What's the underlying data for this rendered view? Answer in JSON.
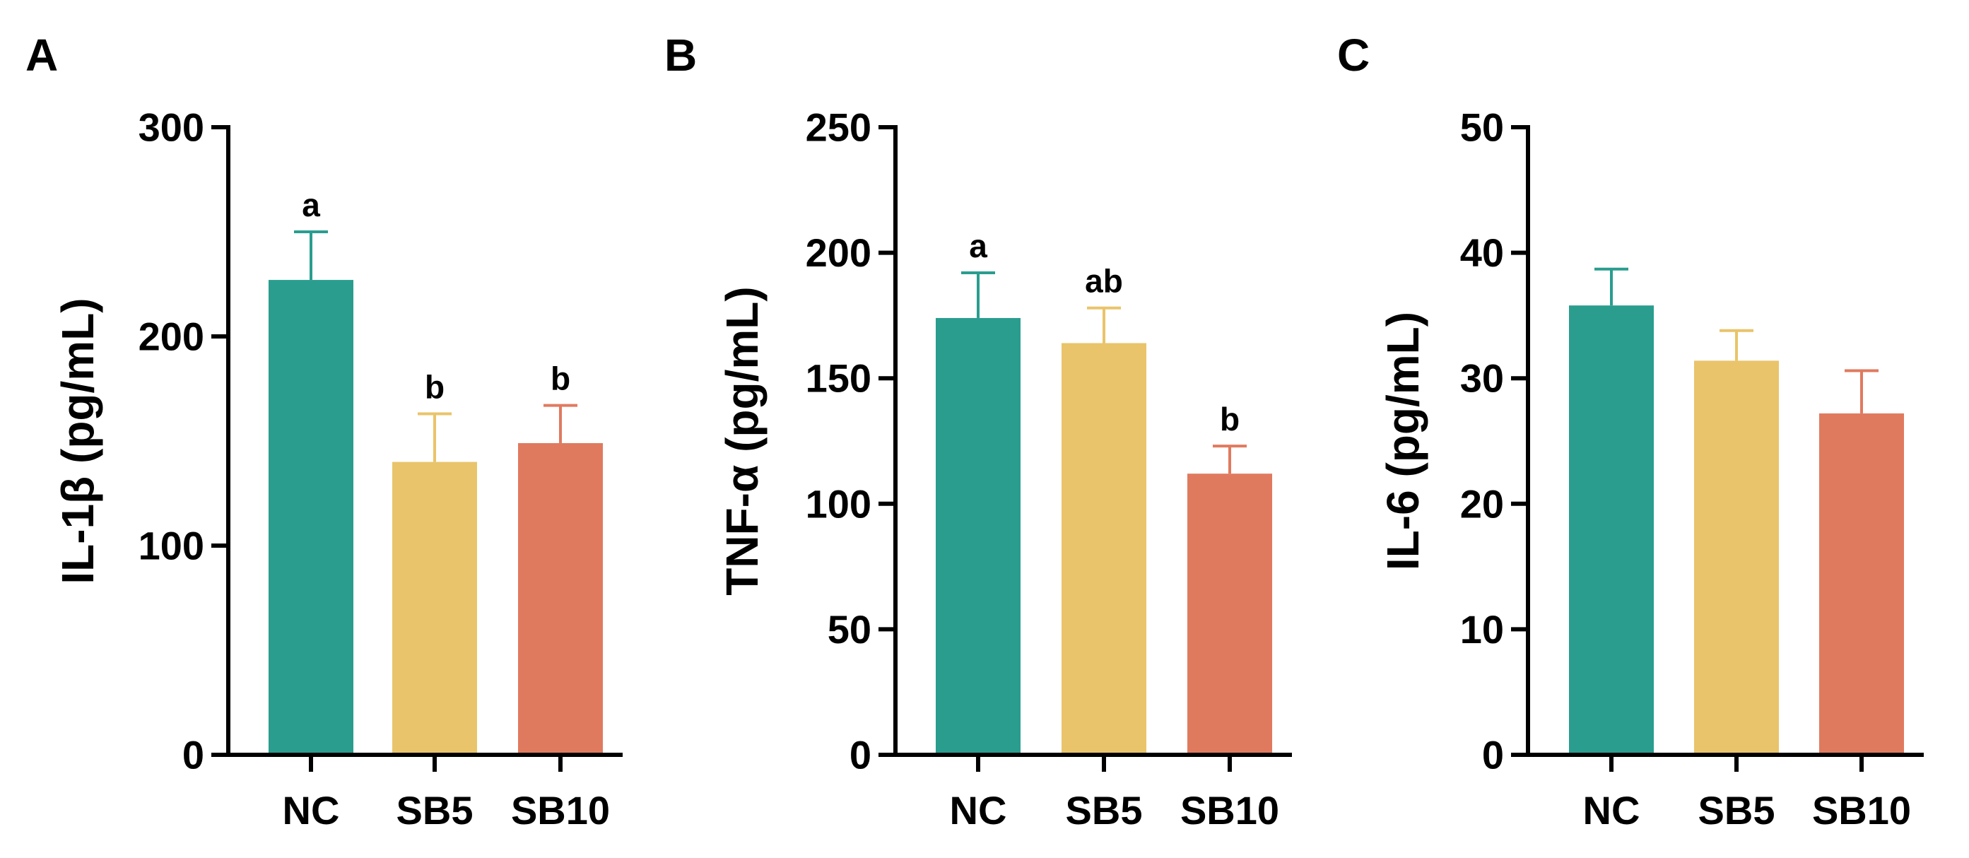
{
  "colors": {
    "NC": "#2a9d8f",
    "SB5": "#e9c46a",
    "SB10": "#e07a5f",
    "axis": "#000000"
  },
  "chart_data": [
    {
      "panel": "A",
      "type": "bar",
      "title": "",
      "xlabel": "",
      "ylabel": "IL-1β (pg/mL)",
      "categories": [
        "NC",
        "SB5",
        "SB10"
      ],
      "values": [
        227,
        140,
        149
      ],
      "errors": [
        23,
        23,
        18
      ],
      "significance": [
        "a",
        "b",
        "b"
      ],
      "ylim": [
        0,
        300
      ],
      "yticks": [
        0,
        100,
        200,
        300
      ],
      "ytick_labels": [
        "0",
        "100",
        "200",
        "300"
      ],
      "grid": false
    },
    {
      "panel": "B",
      "type": "bar",
      "title": "",
      "xlabel": "",
      "ylabel": "TNF-α (pg/mL)",
      "categories": [
        "NC",
        "SB5",
        "SB10"
      ],
      "values": [
        174,
        164,
        112
      ],
      "errors": [
        18,
        14,
        11
      ],
      "significance": [
        "a",
        "ab",
        "b"
      ],
      "ylim": [
        0,
        250
      ],
      "yticks": [
        0,
        50,
        100,
        150,
        200,
        250
      ],
      "ytick_labels": [
        "0",
        "50",
        "100",
        "150",
        "200",
        "250"
      ],
      "grid": false
    },
    {
      "panel": "C",
      "type": "bar",
      "title": "",
      "xlabel": "",
      "ylabel": "IL-6 (pg/mL)",
      "categories": [
        "NC",
        "SB5",
        "SB10"
      ],
      "values": [
        35.8,
        31.4,
        27.2
      ],
      "errors": [
        2.9,
        2.4,
        3.4
      ],
      "significance": [
        "",
        "",
        ""
      ],
      "ylim": [
        0,
        50
      ],
      "yticks": [
        0,
        10,
        20,
        30,
        40,
        50
      ],
      "ytick_labels": [
        "0",
        "10",
        "20",
        "30",
        "40",
        "50"
      ],
      "grid": false
    }
  ]
}
